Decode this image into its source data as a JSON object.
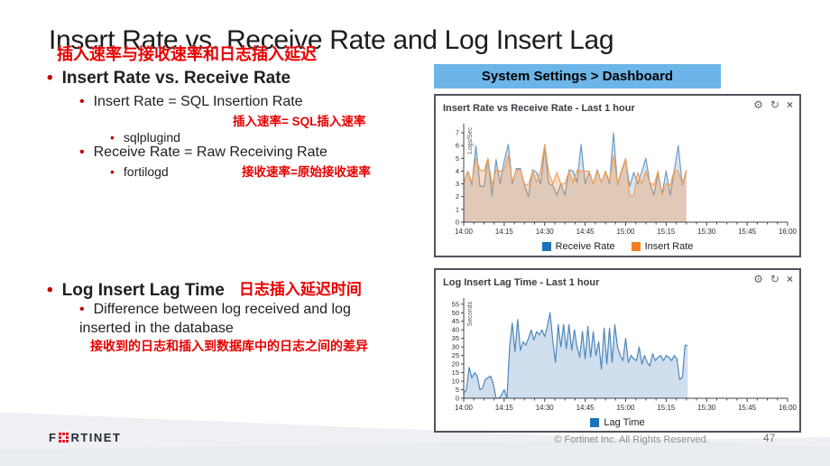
{
  "title": "Insert Rate vs. Receive Rate and Log Insert Lag",
  "subtitle_cn": "插入速率与接收速率和日志插入延迟",
  "nav_banner": "System Settings > Dashboard",
  "bullets": {
    "b1": "Insert Rate vs. Receive Rate",
    "b1_1": "Insert Rate = SQL Insertion Rate",
    "b1_1_cn": "插入速率= SQL插入速率",
    "b1_1_1": "sqlplugind",
    "b1_2": "Receive Rate = Raw Receiving Rate",
    "b1_2_cn": "接收速率=原始接收速率",
    "b1_2_1": "fortilogd",
    "b2": "Log Insert Lag Time",
    "b2_cn": "日志插入延迟时间",
    "b2_1": "Difference between log received and log inserted in the database",
    "b2_1_cn": "接收到的日志和插入到数据库中的日志之间的差异"
  },
  "panel_icons": [
    {
      "name": "gear-icon",
      "glyph": "⚙"
    },
    {
      "name": "refresh-icon",
      "glyph": "↻"
    },
    {
      "name": "close-icon",
      "glyph": "×"
    }
  ],
  "footer": {
    "logo_f": "F",
    "logo_rest": "RTINET",
    "copyright": "© Fortinet Inc. All Rights Reserved.",
    "page": "47"
  },
  "chart_data": [
    {
      "type": "line",
      "panel_title": "Insert Rate vs Receive Rate - Last 1 hour",
      "ylabel": "Logs/Sec",
      "xlabel": "",
      "xlim": [
        0,
        120
      ],
      "ylim": [
        0,
        7.5
      ],
      "xticks": [
        0,
        15,
        30,
        45,
        60,
        75,
        90,
        105,
        120
      ],
      "xtick_labels": [
        "14:00",
        "14:15",
        "14:30",
        "14:45",
        "15:00",
        "15:15",
        "15:30",
        "15:45",
        "16:00"
      ],
      "yticks": [
        0,
        1,
        2,
        3,
        4,
        5,
        6,
        7
      ],
      "minor_step": 3.75,
      "legend_position": "bottom",
      "grid": false,
      "series": [
        {
          "name": "Receive Rate",
          "swatch": "#1c72b8",
          "line": "#6b9dc9",
          "fill": "rgba(70,120,170,0.20)",
          "x_start": 0,
          "x_step": 1.5,
          "values": [
            3.1,
            4.0,
            2.9,
            6.0,
            2.8,
            2.8,
            5.0,
            2.1,
            4.9,
            3.0,
            4.8,
            6.1,
            3.0,
            4.2,
            4.2,
            2.9,
            2.0,
            4.1,
            3.9,
            3.0,
            5.9,
            3.0,
            2.9,
            2.1,
            3.0,
            2.1,
            4.1,
            4.0,
            3.1,
            6.1,
            3.0,
            3.9,
            3.0,
            4.1,
            3.1,
            4.0,
            3.0,
            7.0,
            2.9,
            4.0,
            4.9,
            2.8,
            3.9,
            3.0,
            4.0,
            5.0,
            3.0,
            2.1,
            3.9,
            2.2,
            4.0,
            2.1,
            4.0,
            6.0,
            2.9,
            4.0
          ]
        },
        {
          "name": "Insert Rate",
          "swatch": "#f47d21",
          "line": "#f2a057",
          "fill": "rgba(242,140,60,0.30)",
          "x_start": 0,
          "x_step": 1.5,
          "values": [
            3.0,
            4.0,
            3.1,
            5.0,
            4.1,
            4.0,
            5.0,
            2.9,
            4.1,
            4.0,
            4.1,
            5.2,
            3.2,
            4.1,
            4.1,
            3.0,
            2.9,
            4.0,
            3.1,
            4.1,
            6.1,
            3.9,
            3.0,
            3.9,
            3.0,
            3.0,
            4.0,
            3.1,
            4.1,
            4.0,
            4.0,
            4.0,
            3.0,
            4.0,
            3.1,
            4.0,
            3.2,
            5.2,
            3.0,
            4.1,
            5.0,
            2.0,
            2.1,
            3.9,
            3.0,
            4.0,
            3.1,
            2.9,
            4.0,
            2.1,
            3.0,
            2.9,
            4.1,
            4.0,
            3.0,
            4.1
          ]
        }
      ]
    },
    {
      "type": "area",
      "panel_title": "Log Insert Lag Time - Last 1 hour",
      "ylabel": "Seconds",
      "xlabel": "",
      "xlim": [
        0,
        120
      ],
      "ylim": [
        0,
        57
      ],
      "xticks": [
        0,
        15,
        30,
        45,
        60,
        75,
        90,
        105,
        120
      ],
      "xtick_labels": [
        "14:00",
        "14:15",
        "14:30",
        "14:45",
        "15:00",
        "15:15",
        "15:30",
        "15:45",
        "16:00"
      ],
      "yticks": [
        0,
        5,
        10,
        15,
        20,
        25,
        30,
        35,
        40,
        45,
        50,
        55
      ],
      "minor_step": 3.75,
      "legend_position": "bottom",
      "grid": false,
      "series": [
        {
          "name": "Lag Time",
          "swatch": "#1c72b8",
          "line": "#4e88bc",
          "fill": "rgba(120,160,205,0.35)",
          "x_start": 0,
          "x_step": 1,
          "values": [
            3,
            5,
            18,
            12,
            15,
            13,
            5,
            6,
            11,
            12,
            13,
            8,
            0,
            0,
            2,
            5,
            0,
            30,
            44,
            27,
            46,
            28,
            33,
            31,
            35,
            40,
            34,
            39,
            37,
            40,
            36,
            42,
            50,
            34,
            21,
            43,
            30,
            43,
            29,
            43,
            28,
            40,
            30,
            24,
            39,
            23,
            42,
            24,
            39,
            25,
            33,
            17,
            41,
            20,
            41,
            21,
            43,
            30,
            25,
            22,
            35,
            21,
            25,
            23,
            22,
            30,
            20,
            25,
            21,
            19,
            26,
            22,
            24,
            25,
            22,
            25,
            24,
            22,
            25,
            23,
            11,
            12,
            31,
            31
          ]
        }
      ]
    }
  ]
}
